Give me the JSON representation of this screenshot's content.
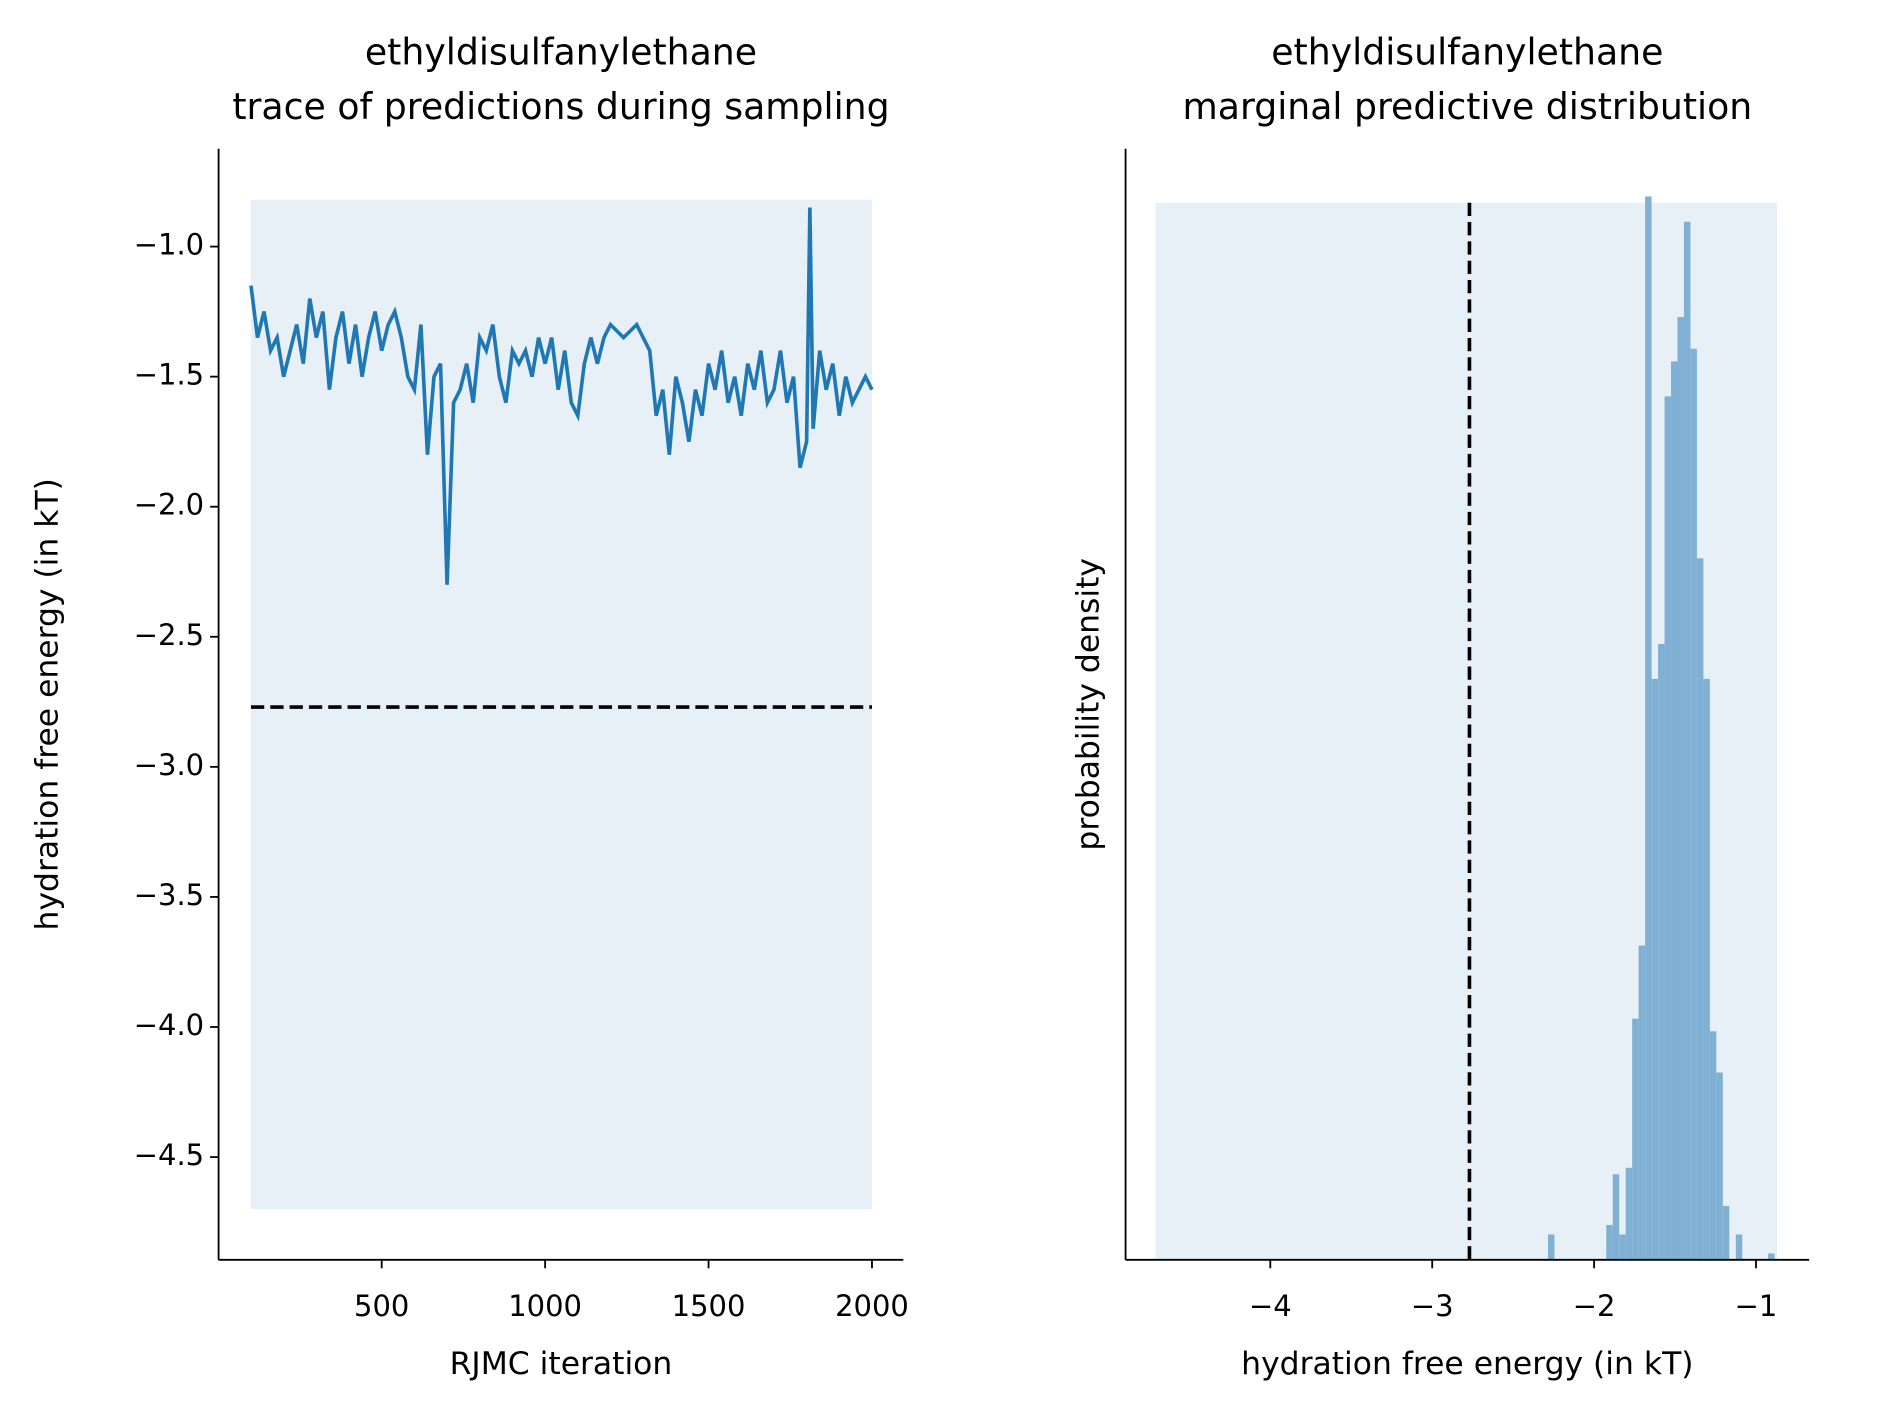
{
  "chart_data": [
    {
      "type": "line",
      "title": [
        "ethyldisulfanylethane",
        "trace of predictions during sampling"
      ],
      "xlabel": "RJMC iteration",
      "ylabel": "hydration free energy (in kT)",
      "color": "#1f77b4",
      "x": [
        100,
        120,
        140,
        160,
        180,
        200,
        220,
        240,
        260,
        280,
        300,
        320,
        340,
        360,
        380,
        400,
        420,
        440,
        460,
        480,
        500,
        520,
        540,
        560,
        580,
        600,
        620,
        640,
        660,
        680,
        700,
        720,
        740,
        760,
        780,
        800,
        820,
        840,
        860,
        880,
        900,
        920,
        940,
        960,
        980,
        1000,
        1020,
        1040,
        1060,
        1080,
        1100,
        1120,
        1140,
        1160,
        1180,
        1200,
        1240,
        1280,
        1320,
        1340,
        1360,
        1380,
        1400,
        1420,
        1440,
        1460,
        1480,
        1500,
        1520,
        1540,
        1560,
        1580,
        1600,
        1620,
        1640,
        1660,
        1680,
        1700,
        1720,
        1740,
        1760,
        1780,
        1800,
        1810,
        1820,
        1840,
        1860,
        1880,
        1900,
        1920,
        1940,
        1960,
        1980,
        2000
      ],
      "values": [
        -1.15,
        -1.35,
        -1.25,
        -1.4,
        -1.35,
        -1.5,
        -1.4,
        -1.3,
        -1.45,
        -1.2,
        -1.35,
        -1.25,
        -1.55,
        -1.35,
        -1.25,
        -1.45,
        -1.3,
        -1.5,
        -1.35,
        -1.25,
        -1.4,
        -1.3,
        -1.25,
        -1.35,
        -1.5,
        -1.55,
        -1.3,
        -1.8,
        -1.5,
        -1.45,
        -2.3,
        -1.6,
        -1.55,
        -1.45,
        -1.6,
        -1.35,
        -1.4,
        -1.3,
        -1.5,
        -1.6,
        -1.4,
        -1.45,
        -1.4,
        -1.5,
        -1.35,
        -1.45,
        -1.35,
        -1.55,
        -1.4,
        -1.6,
        -1.65,
        -1.45,
        -1.35,
        -1.45,
        -1.35,
        -1.3,
        -1.35,
        -1.3,
        -1.4,
        -1.65,
        -1.55,
        -1.8,
        -1.5,
        -1.6,
        -1.75,
        -1.55,
        -1.65,
        -1.45,
        -1.55,
        -1.4,
        -1.6,
        -1.5,
        -1.65,
        -1.45,
        -1.55,
        -1.4,
        -1.6,
        -1.55,
        -1.4,
        -1.6,
        -1.5,
        -1.85,
        -1.75,
        -0.85,
        -1.7,
        -1.4,
        -1.55,
        -1.45,
        -1.65,
        -1.5,
        -1.6,
        -1.55,
        -1.5,
        -1.55
      ],
      "hline": -2.77,
      "band": {
        "x": [
          100,
          2000
        ],
        "y": [
          -4.7,
          -0.82
        ],
        "color": "#e8f0f7"
      },
      "xlim": [
        1,
        2096
      ],
      "ylim": [
        -4.895,
        -0.624
      ],
      "xticks": [
        500,
        1000,
        1500,
        2000
      ],
      "yticks": [
        {
          "value": -1.0,
          "label": "−1.0"
        },
        {
          "value": -1.5,
          "label": "−1.5"
        },
        {
          "value": -2.0,
          "label": "−2.0"
        },
        {
          "value": -2.5,
          "label": "−2.5"
        },
        {
          "value": -3.0,
          "label": "−3.0"
        },
        {
          "value": -3.5,
          "label": "−3.5"
        },
        {
          "value": -4.0,
          "label": "−4.0"
        },
        {
          "value": -4.5,
          "label": "−4.5"
        }
      ]
    },
    {
      "type": "histogram",
      "title": [
        "ethyldisulfanylethane",
        "marginal predictive distribution"
      ],
      "xlabel": "hydration free energy (in kT)",
      "ylabel": "probability density",
      "color": "#80b1d5",
      "bins": [
        -2.285,
        -2.245,
        -2.205,
        -2.165,
        -2.125,
        -2.085,
        -2.045,
        -2.005,
        -1.965,
        -1.925,
        -1.885,
        -1.845,
        -1.805,
        -1.765,
        -1.725,
        -1.685,
        -1.645,
        -1.605,
        -1.565,
        -1.525,
        -1.485,
        -1.445,
        -1.405,
        -1.365,
        -1.325,
        -1.285,
        -1.245,
        -1.205,
        -1.165,
        -1.125,
        -1.085,
        -1.045,
        -1.005,
        -0.965,
        -0.925,
        -0.885
      ],
      "values": [
        0.08,
        0,
        0,
        0,
        0,
        0,
        0,
        0,
        0,
        0.11,
        0.27,
        0.08,
        0.29,
        0.76,
        0.99,
        3.35,
        1.83,
        1.94,
        2.72,
        2.83,
        2.97,
        3.27,
        2.87,
        2.21,
        1.83,
        0.72,
        0.59,
        0.17,
        0,
        0.08,
        0,
        0,
        0,
        0,
        0.02
      ],
      "vline": -2.77,
      "band": {
        "x": [
          -4.71,
          -0.87
        ],
        "y": [
          0,
          3.33
        ],
        "color": "#e8f0f7"
      },
      "xlim": [
        -4.894,
        -0.672
      ],
      "ylim": [
        0,
        3.5
      ],
      "xticks": [
        {
          "value": -4,
          "label": "−4"
        },
        {
          "value": -3,
          "label": "−3"
        },
        {
          "value": -2,
          "label": "−2"
        },
        {
          "value": -1,
          "label": "−1"
        }
      ]
    }
  ]
}
